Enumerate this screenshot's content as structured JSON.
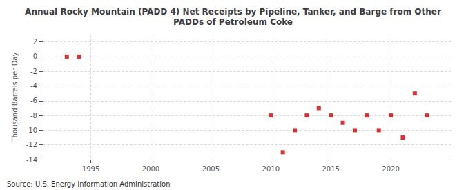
{
  "chart_data": {
    "type": "scatter",
    "title": "Annual Rocky Mountain (PADD 4) Net Receipts by Pipeline, Tanker, and Barge from Other\nPADDs of Petroleum Coke",
    "ylabel": "Thousand Barrels per Day",
    "annotations": [
      "Source: U.S. Energy Information Administration"
    ],
    "x": [
      1993,
      1994,
      2010,
      2011,
      2012,
      2013,
      2014,
      2015,
      2016,
      2017,
      2018,
      2019,
      2020,
      2021,
      2022,
      2023
    ],
    "values": [
      0,
      0,
      -8,
      -13,
      -10,
      -8,
      -7,
      -8,
      -9,
      -10,
      -8,
      -10,
      -8,
      -11,
      -5,
      -8
    ],
    "color": "#cc0000",
    "marker": "square",
    "xlim": [
      1991,
      2025
    ],
    "xticks": [
      1995,
      2000,
      2005,
      2010,
      2015,
      2020
    ],
    "ylim": [
      -14,
      3
    ],
    "yticks": [
      2,
      0,
      -2,
      -4,
      -6,
      -8,
      -10,
      -12,
      -14
    ],
    "grid": true
  }
}
